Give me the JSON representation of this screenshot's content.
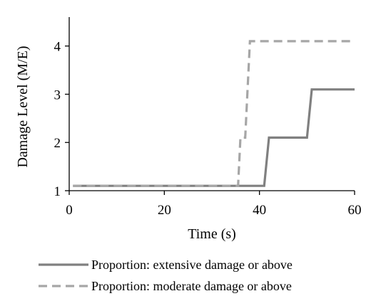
{
  "chart_data": {
    "type": "line",
    "xlabel": "Time (s)",
    "ylabel": "Damage Level (M/E)",
    "xlim": [
      0,
      60
    ],
    "ylim": [
      1,
      4.6
    ],
    "xticks": [
      0,
      20,
      40,
      60
    ],
    "yticks": [
      1,
      2,
      3,
      4
    ],
    "grid": false,
    "legend_position": "bottom",
    "series": [
      {
        "name": "Proportion: extensive damage or above",
        "style": "solid",
        "color": "#808080",
        "x": [
          0.8,
          41,
          42,
          50,
          51,
          60
        ],
        "y": [
          1.1,
          1.1,
          2.1,
          2.1,
          3.1,
          3.1
        ]
      },
      {
        "name": "Proportion: moderate damage or above",
        "style": "dashed",
        "color": "#a6a6a6",
        "x": [
          0.8,
          35.5,
          36,
          37,
          38,
          60
        ],
        "y": [
          1.1,
          1.1,
          2.1,
          2.1,
          4.1,
          4.1
        ]
      }
    ]
  }
}
